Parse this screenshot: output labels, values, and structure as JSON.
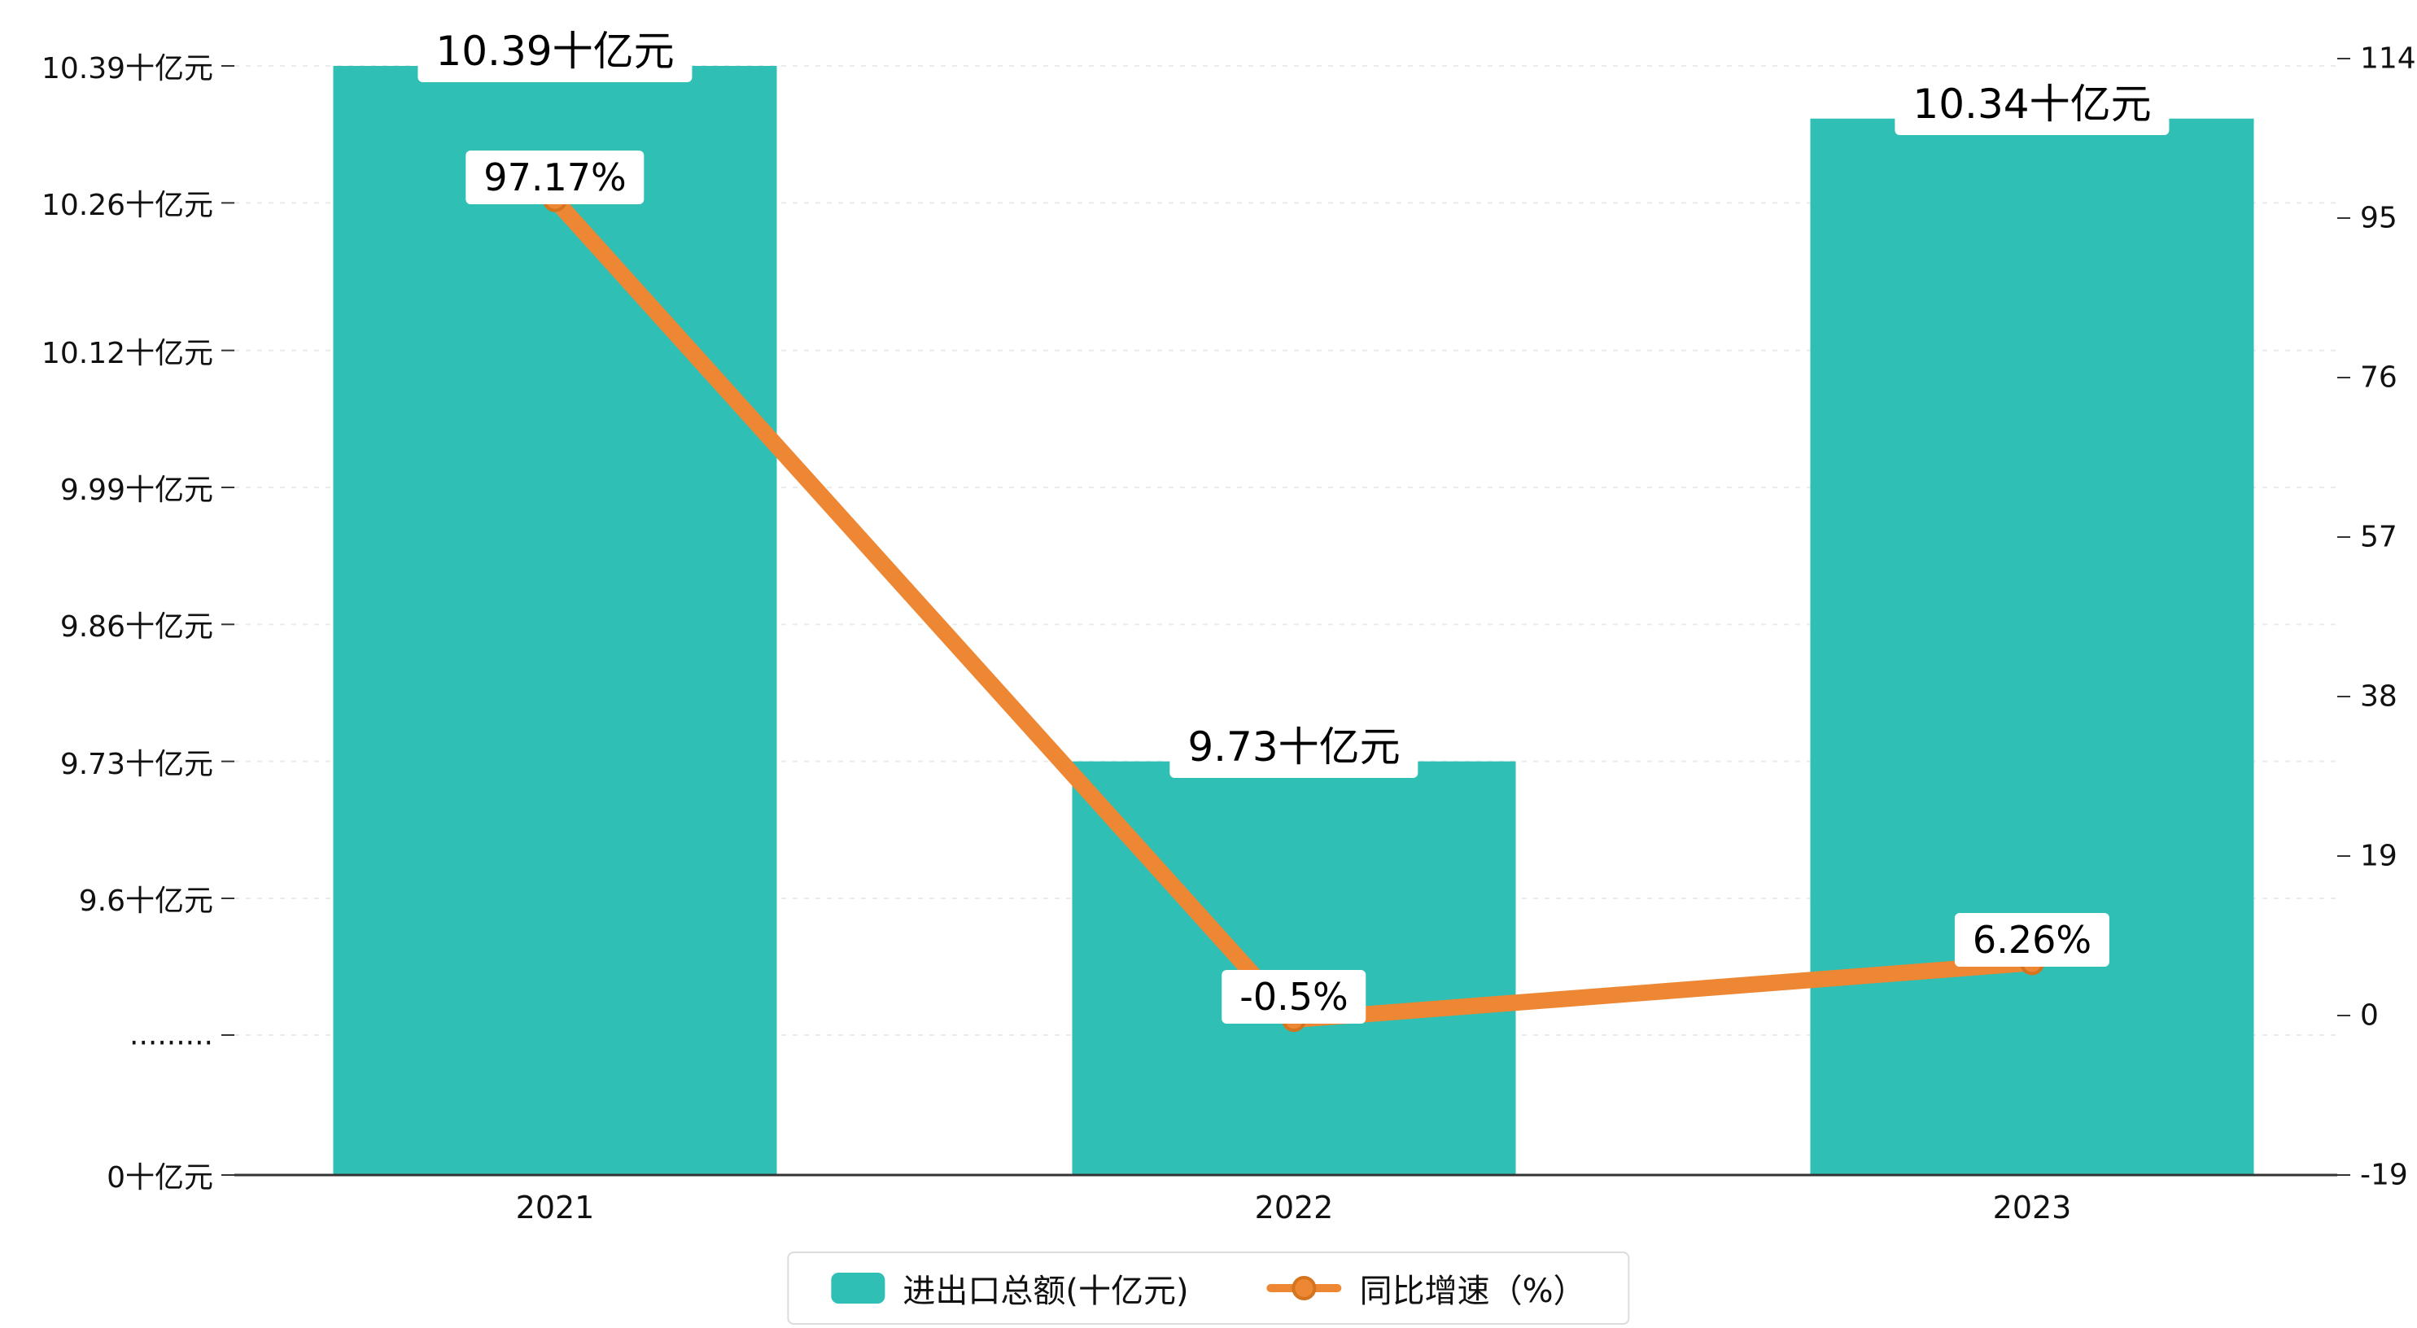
{
  "chart_data": {
    "type": "bar",
    "combo": "bar+line",
    "categories": [
      "2021",
      "2022",
      "2023"
    ],
    "series": [
      {
        "name": "进出口总额(十亿元)",
        "type": "bar",
        "color": "#2FBFB4",
        "values": [
          10.39,
          9.73,
          10.34
        ],
        "data_labels": [
          "10.39十亿元",
          "9.73十亿元",
          "10.34十亿元"
        ]
      },
      {
        "name": "同比增速（%）",
        "type": "line",
        "color": "#ED8733",
        "marker_border": "#D4741F",
        "values": [
          97.17,
          -0.5,
          6.26
        ],
        "data_labels": [
          "97.17%",
          "-0.5%",
          "6.26%"
        ]
      }
    ],
    "left_axis": {
      "tick_labels": [
        "10.39十亿元",
        "10.26十亿元",
        "10.12十亿元",
        "9.99十亿元",
        "9.86十亿元",
        "9.73十亿元",
        "9.6十亿元",
        ".........",
        "0十亿元"
      ],
      "tick_values": [
        10.39,
        10.26,
        10.12,
        9.99,
        9.86,
        9.73,
        9.6,
        null,
        0
      ],
      "broken_axis": true
    },
    "right_axis": {
      "tick_labels": [
        "114",
        "95",
        "76",
        "57",
        "38",
        "19",
        "0",
        "-19"
      ],
      "tick_values": [
        114,
        95,
        76,
        57,
        38,
        19,
        0,
        -19
      ],
      "range": [
        -19,
        114
      ]
    },
    "legend": {
      "position": "bottom",
      "items": [
        "进出口总额(十亿元)",
        "同比增速（%）"
      ]
    },
    "grid": true,
    "colors": {
      "gridline": "#ebebeb",
      "axis_line": "#333333",
      "label_background": "#ffffff"
    }
  }
}
